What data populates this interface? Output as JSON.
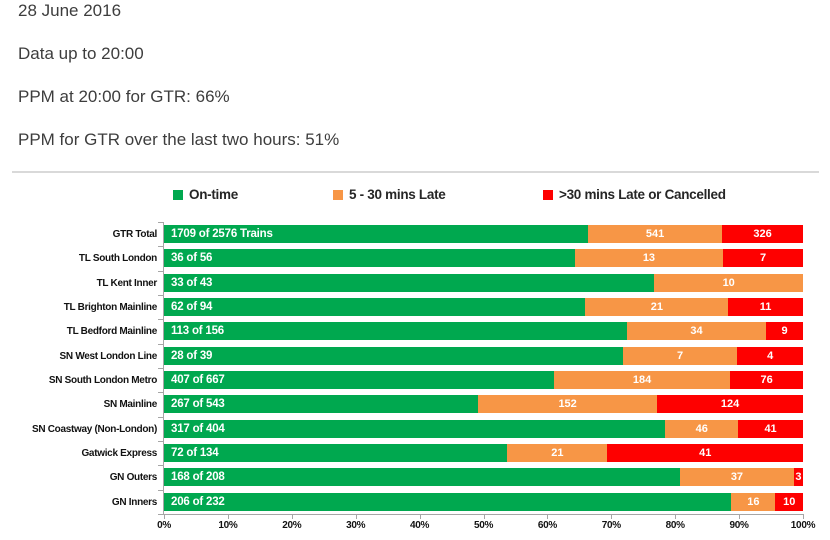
{
  "header": {
    "date": "28 June 2016",
    "data_up_to": "Data up to 20:00",
    "ppm_current": "PPM at 20:00 for GTR: 66%",
    "ppm_two_hours": "PPM for GTR over the last two hours: 51%"
  },
  "legend": [
    {
      "name": "on-time-swatch",
      "label": "On-time",
      "color": "#00A84F"
    },
    {
      "name": "late-swatch",
      "label": "5 - 30 mins Late",
      "color": "#F79646"
    },
    {
      "name": "cancelled-swatch",
      "label": ">30 mins Late or Cancelled",
      "color": "#FE0000"
    }
  ],
  "chart_data": {
    "type": "bar",
    "orientation": "horizontal",
    "stacked": true,
    "normalized_to_percent": true,
    "legend_position": "top",
    "series_names": [
      "On-time",
      "5 - 30 mins Late",
      ">30 mins Late or Cancelled"
    ],
    "colors": {
      "on_time": "#00A84F",
      "late_5_30": "#F79646",
      "late_over_30_or_cancelled": "#FE0000"
    },
    "x_axis": {
      "min": 0,
      "max": 100,
      "ticks": [
        "0%",
        "10%",
        "20%",
        "30%",
        "40%",
        "50%",
        "60%",
        "70%",
        "80%",
        "90%",
        "100%"
      ]
    },
    "rows": [
      {
        "category": "GTR Total",
        "total": 2576,
        "values": {
          "on_time": 1709,
          "late_5_30": 541,
          "late_over_30_or_cancelled": 326
        },
        "labels": {
          "on_time": "1709 of 2576 Trains",
          "late_5_30": "541",
          "late_over_30_or_cancelled": "326"
        }
      },
      {
        "category": "TL South London",
        "total": 56,
        "values": {
          "on_time": 36,
          "late_5_30": 13,
          "late_over_30_or_cancelled": 7
        },
        "labels": {
          "on_time": "36 of 56",
          "late_5_30": "13",
          "late_over_30_or_cancelled": "7"
        }
      },
      {
        "category": "TL Kent Inner",
        "total": 43,
        "values": {
          "on_time": 33,
          "late_5_30": 10,
          "late_over_30_or_cancelled": 0
        },
        "labels": {
          "on_time": "33 of 43",
          "late_5_30": "10",
          "late_over_30_or_cancelled": ""
        }
      },
      {
        "category": "TL Brighton Mainline",
        "total": 94,
        "values": {
          "on_time": 62,
          "late_5_30": 21,
          "late_over_30_or_cancelled": 11
        },
        "labels": {
          "on_time": "62 of 94",
          "late_5_30": "21",
          "late_over_30_or_cancelled": "11"
        }
      },
      {
        "category": "TL Bedford Mainline",
        "total": 156,
        "values": {
          "on_time": 113,
          "late_5_30": 34,
          "late_over_30_or_cancelled": 9
        },
        "labels": {
          "on_time": "113 of 156",
          "late_5_30": "34",
          "late_over_30_or_cancelled": "9"
        }
      },
      {
        "category": "SN West London Line",
        "total": 39,
        "values": {
          "on_time": 28,
          "late_5_30": 7,
          "late_over_30_or_cancelled": 4
        },
        "labels": {
          "on_time": "28 of 39",
          "late_5_30": "7",
          "late_over_30_or_cancelled": "4"
        }
      },
      {
        "category": "SN South London Metro",
        "total": 667,
        "values": {
          "on_time": 407,
          "late_5_30": 184,
          "late_over_30_or_cancelled": 76
        },
        "labels": {
          "on_time": "407 of 667",
          "late_5_30": "184",
          "late_over_30_or_cancelled": "76"
        }
      },
      {
        "category": "SN Mainline",
        "total": 543,
        "values": {
          "on_time": 267,
          "late_5_30": 152,
          "late_over_30_or_cancelled": 124
        },
        "labels": {
          "on_time": "267 of 543",
          "late_5_30": "152",
          "late_over_30_or_cancelled": "124"
        }
      },
      {
        "category": "SN Coastway (Non-London)",
        "total": 404,
        "values": {
          "on_time": 317,
          "late_5_30": 46,
          "late_over_30_or_cancelled": 41
        },
        "labels": {
          "on_time": "317 of 404",
          "late_5_30": "46",
          "late_over_30_or_cancelled": "41"
        }
      },
      {
        "category": "Gatwick Express",
        "total": 134,
        "values": {
          "on_time": 72,
          "late_5_30": 21,
          "late_over_30_or_cancelled": 41
        },
        "labels": {
          "on_time": "72 of 134",
          "late_5_30": "21",
          "late_over_30_or_cancelled": "41"
        }
      },
      {
        "category": "GN Outers",
        "total": 208,
        "values": {
          "on_time": 168,
          "late_5_30": 37,
          "late_over_30_or_cancelled": 3
        },
        "labels": {
          "on_time": "168 of 208",
          "late_5_30": "37",
          "late_over_30_or_cancelled": "3"
        }
      },
      {
        "category": "GN Inners",
        "total": 232,
        "values": {
          "on_time": 206,
          "late_5_30": 16,
          "late_over_30_or_cancelled": 10
        },
        "labels": {
          "on_time": "206 of 232",
          "late_5_30": "16",
          "late_over_30_or_cancelled": "10"
        }
      }
    ]
  }
}
